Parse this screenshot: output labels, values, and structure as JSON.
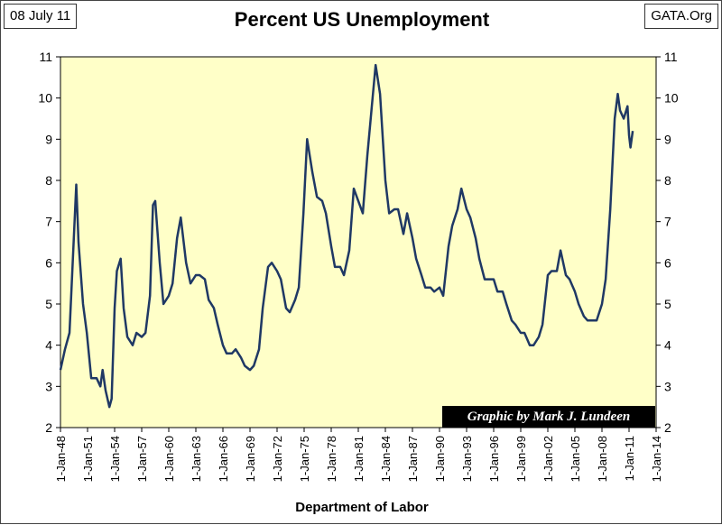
{
  "header": {
    "date": "08 July 11",
    "site": "GATA.Org"
  },
  "chart_data": {
    "type": "line",
    "title": "Percent US Unemployment",
    "xlabel": "Department of Labor",
    "ylabel": "",
    "credit": "Graphic by Mark J. Lundeen",
    "ylim": [
      2,
      11
    ],
    "yticks": [
      2,
      3,
      4,
      5,
      6,
      7,
      8,
      9,
      10,
      11
    ],
    "xlim": [
      "1948-01-01",
      "2014-01-01"
    ],
    "xticks": [
      "1-Jan-48",
      "1-Jan-51",
      "1-Jan-54",
      "1-Jan-57",
      "1-Jan-60",
      "1-Jan-63",
      "1-Jan-66",
      "1-Jan-69",
      "1-Jan-72",
      "1-Jan-75",
      "1-Jan-78",
      "1-Jan-81",
      "1-Jan-84",
      "1-Jan-87",
      "1-Jan-90",
      "1-Jan-93",
      "1-Jan-96",
      "1-Jan-99",
      "1-Jan-02",
      "1-Jan-05",
      "1-Jan-08",
      "1-Jan-11",
      "1-Jan-14"
    ],
    "grid": false,
    "legend": "none",
    "colors": {
      "plot_bg": "#ffffc8",
      "line": "#1f3864",
      "page_bg": "#ffffff"
    },
    "series": [
      {
        "values": [
          [
            "1948-01",
            3.4
          ],
          [
            "1948-07",
            3.9
          ],
          [
            "1949-01",
            4.3
          ],
          [
            "1949-07",
            6.7
          ],
          [
            "1949-10",
            7.9
          ],
          [
            "1950-01",
            6.5
          ],
          [
            "1950-07",
            5.0
          ],
          [
            "1950-12",
            4.3
          ],
          [
            "1951-06",
            3.2
          ],
          [
            "1952-01",
            3.2
          ],
          [
            "1952-06",
            3.0
          ],
          [
            "1952-09",
            3.4
          ],
          [
            "1953-01",
            2.9
          ],
          [
            "1953-06",
            2.5
          ],
          [
            "1953-09",
            2.7
          ],
          [
            "1954-01",
            4.9
          ],
          [
            "1954-04",
            5.8
          ],
          [
            "1954-09",
            6.1
          ],
          [
            "1955-01",
            4.9
          ],
          [
            "1955-06",
            4.2
          ],
          [
            "1956-01",
            4.0
          ],
          [
            "1956-06",
            4.3
          ],
          [
            "1957-01",
            4.2
          ],
          [
            "1957-06",
            4.3
          ],
          [
            "1957-12",
            5.2
          ],
          [
            "1958-04",
            7.4
          ],
          [
            "1958-07",
            7.5
          ],
          [
            "1959-01",
            6.0
          ],
          [
            "1959-06",
            5.0
          ],
          [
            "1960-01",
            5.2
          ],
          [
            "1960-06",
            5.5
          ],
          [
            "1960-12",
            6.6
          ],
          [
            "1961-05",
            7.1
          ],
          [
            "1961-12",
            6.0
          ],
          [
            "1962-06",
            5.5
          ],
          [
            "1963-01",
            5.7
          ],
          [
            "1963-06",
            5.7
          ],
          [
            "1964-01",
            5.6
          ],
          [
            "1964-06",
            5.1
          ],
          [
            "1965-01",
            4.9
          ],
          [
            "1965-06",
            4.5
          ],
          [
            "1966-01",
            4.0
          ],
          [
            "1966-06",
            3.8
          ],
          [
            "1967-01",
            3.8
          ],
          [
            "1967-06",
            3.9
          ],
          [
            "1968-01",
            3.7
          ],
          [
            "1968-06",
            3.5
          ],
          [
            "1969-01",
            3.4
          ],
          [
            "1969-06",
            3.5
          ],
          [
            "1970-01",
            3.9
          ],
          [
            "1970-06",
            4.9
          ],
          [
            "1971-01",
            5.9
          ],
          [
            "1971-06",
            6.0
          ],
          [
            "1972-01",
            5.8
          ],
          [
            "1972-06",
            5.6
          ],
          [
            "1973-01",
            4.9
          ],
          [
            "1973-06",
            4.8
          ],
          [
            "1974-01",
            5.1
          ],
          [
            "1974-06",
            5.4
          ],
          [
            "1974-12",
            7.2
          ],
          [
            "1975-05",
            9.0
          ],
          [
            "1975-12",
            8.2
          ],
          [
            "1976-06",
            7.6
          ],
          [
            "1977-01",
            7.5
          ],
          [
            "1977-06",
            7.2
          ],
          [
            "1978-01",
            6.4
          ],
          [
            "1978-06",
            5.9
          ],
          [
            "1979-01",
            5.9
          ],
          [
            "1979-06",
            5.7
          ],
          [
            "1980-01",
            6.3
          ],
          [
            "1980-07",
            7.8
          ],
          [
            "1981-01",
            7.5
          ],
          [
            "1981-07",
            7.2
          ],
          [
            "1982-01",
            8.6
          ],
          [
            "1982-07",
            9.8
          ],
          [
            "1982-12",
            10.8
          ],
          [
            "1983-06",
            10.1
          ],
          [
            "1984-01",
            8.0
          ],
          [
            "1984-06",
            7.2
          ],
          [
            "1985-01",
            7.3
          ],
          [
            "1985-06",
            7.3
          ],
          [
            "1986-01",
            6.7
          ],
          [
            "1986-06",
            7.2
          ],
          [
            "1987-01",
            6.6
          ],
          [
            "1987-06",
            6.1
          ],
          [
            "1988-01",
            5.7
          ],
          [
            "1988-06",
            5.4
          ],
          [
            "1989-01",
            5.4
          ],
          [
            "1989-06",
            5.3
          ],
          [
            "1990-01",
            5.4
          ],
          [
            "1990-06",
            5.2
          ],
          [
            "1991-01",
            6.4
          ],
          [
            "1991-06",
            6.9
          ],
          [
            "1992-01",
            7.3
          ],
          [
            "1992-06",
            7.8
          ],
          [
            "1993-01",
            7.3
          ],
          [
            "1993-06",
            7.1
          ],
          [
            "1994-01",
            6.6
          ],
          [
            "1994-06",
            6.1
          ],
          [
            "1995-01",
            5.6
          ],
          [
            "1995-06",
            5.6
          ],
          [
            "1996-01",
            5.6
          ],
          [
            "1996-06",
            5.3
          ],
          [
            "1997-01",
            5.3
          ],
          [
            "1997-06",
            5.0
          ],
          [
            "1998-01",
            4.6
          ],
          [
            "1998-06",
            4.5
          ],
          [
            "1999-01",
            4.3
          ],
          [
            "1999-06",
            4.3
          ],
          [
            "2000-01",
            4.0
          ],
          [
            "2000-06",
            4.0
          ],
          [
            "2001-01",
            4.2
          ],
          [
            "2001-06",
            4.5
          ],
          [
            "2002-01",
            5.7
          ],
          [
            "2002-06",
            5.8
          ],
          [
            "2003-01",
            5.8
          ],
          [
            "2003-06",
            6.3
          ],
          [
            "2004-01",
            5.7
          ],
          [
            "2004-06",
            5.6
          ],
          [
            "2005-01",
            5.3
          ],
          [
            "2005-06",
            5.0
          ],
          [
            "2006-01",
            4.7
          ],
          [
            "2006-06",
            4.6
          ],
          [
            "2007-01",
            4.6
          ],
          [
            "2007-06",
            4.6
          ],
          [
            "2008-01",
            5.0
          ],
          [
            "2008-06",
            5.6
          ],
          [
            "2008-12",
            7.3
          ],
          [
            "2009-06",
            9.5
          ],
          [
            "2009-10",
            10.1
          ],
          [
            "2010-01",
            9.7
          ],
          [
            "2010-06",
            9.5
          ],
          [
            "2010-11",
            9.8
          ],
          [
            "2011-01",
            9.1
          ],
          [
            "2011-03",
            8.8
          ],
          [
            "2011-06",
            9.2
          ]
        ]
      }
    ]
  }
}
